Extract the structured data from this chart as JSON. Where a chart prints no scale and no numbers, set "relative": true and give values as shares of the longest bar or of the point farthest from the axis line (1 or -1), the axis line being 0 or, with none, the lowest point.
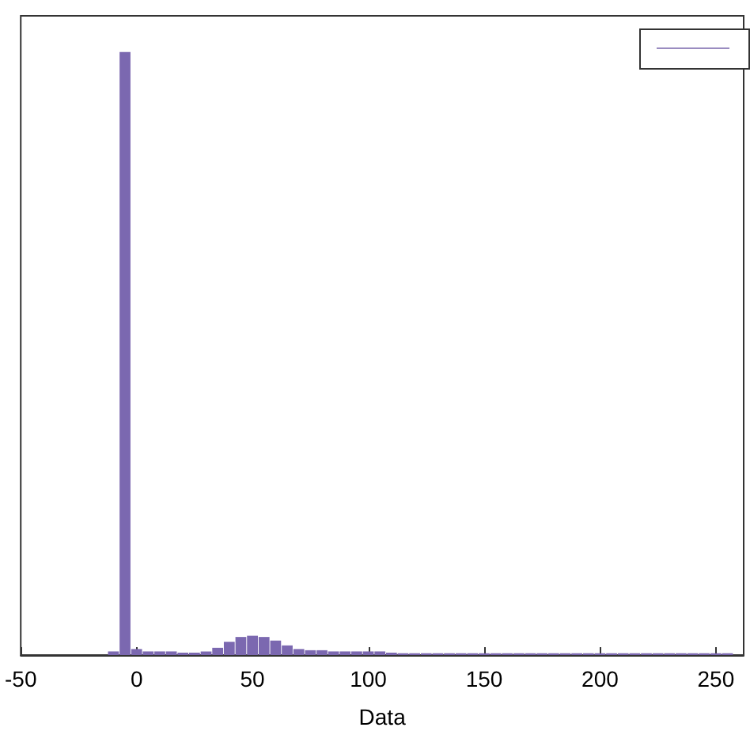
{
  "chart_data": {
    "type": "bar",
    "xlabel": "Data",
    "relative": true,
    "color": "#7b68b0",
    "xlim": [
      -50,
      262
    ],
    "xticks": [
      -50,
      0,
      50,
      100,
      150,
      200,
      250
    ],
    "x": [
      -10,
      -5,
      0,
      5,
      10,
      15,
      20,
      25,
      30,
      35,
      40,
      45,
      50,
      55,
      60,
      65,
      70,
      75,
      80,
      85,
      90,
      95,
      100,
      105,
      110,
      115,
      120,
      125,
      130,
      135,
      140,
      145,
      150,
      155,
      160,
      165,
      170,
      175,
      180,
      185,
      190,
      195,
      200,
      205,
      210,
      215,
      220,
      225,
      230,
      235,
      240,
      245,
      250,
      255
    ],
    "values": [
      0.006,
      1,
      0.01,
      0.006,
      0.006,
      0.006,
      0.004,
      0.004,
      0.006,
      0.012,
      0.022,
      0.03,
      0.032,
      0.03,
      0.024,
      0.016,
      0.01,
      0.008,
      0.008,
      0.006,
      0.006,
      0.006,
      0.006,
      0.006,
      0.004,
      0.003,
      0.003,
      0.003,
      0.003,
      0.003,
      0.003,
      0.003,
      0.003,
      0.003,
      0.003,
      0.003,
      0.003,
      0.003,
      0.003,
      0.003,
      0.003,
      0.003,
      0.003,
      0.003,
      0.003,
      0.003,
      0.003,
      0.003,
      0.003,
      0.003,
      0.003,
      0.003,
      0.003,
      0.003
    ]
  }
}
